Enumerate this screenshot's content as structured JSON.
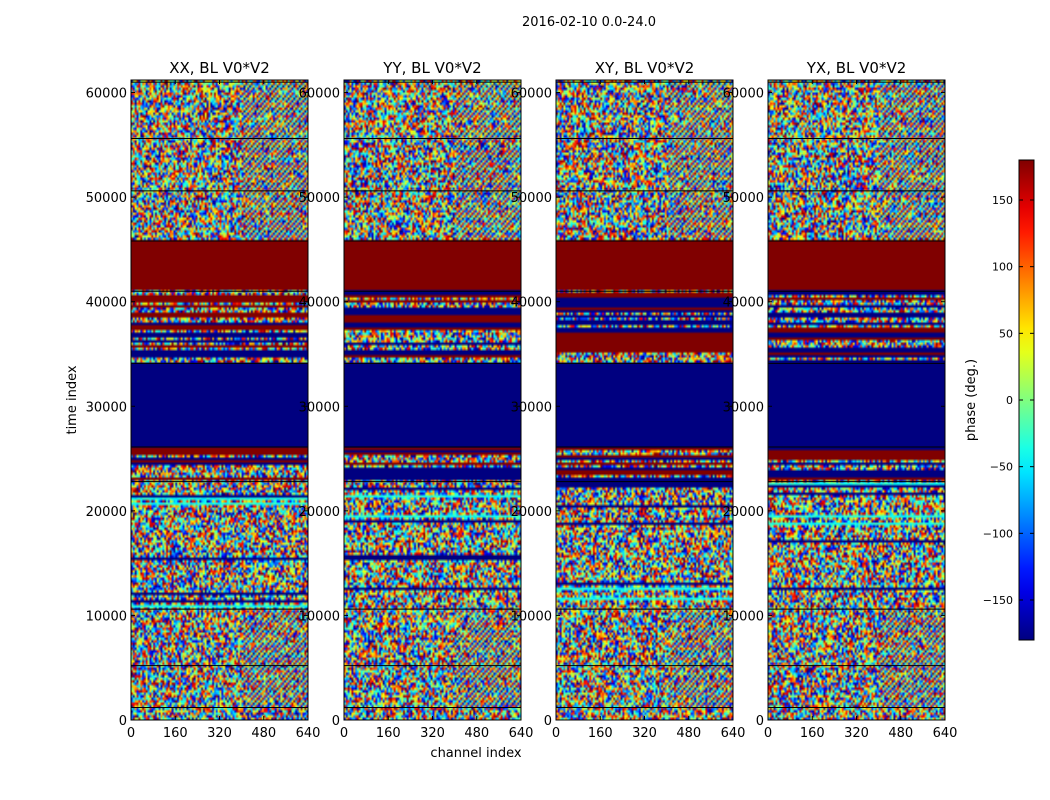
{
  "chart_data": {
    "type": "heatmap",
    "suptitle": "2016-02-10 0.0-24.0",
    "xlabel": "channel index",
    "ylabel": "time index",
    "xlim": [
      0,
      640
    ],
    "ylim": [
      0,
      61200
    ],
    "xticks": [
      0,
      160,
      320,
      480,
      640
    ],
    "yticks": [
      0,
      10000,
      20000,
      30000,
      40000,
      50000,
      60000
    ],
    "panels": [
      {
        "title": "XX, BL V0*V2"
      },
      {
        "title": "YY, BL V0*V2"
      },
      {
        "title": "XY, BL V0*V2"
      },
      {
        "title": "YX, BL V0*V2"
      }
    ],
    "bands": [
      {
        "t0": 0,
        "t1": 1200,
        "kind": "noise"
      },
      {
        "t0": 1200,
        "t1": 5200,
        "kind": "fringe_noise"
      },
      {
        "t0": 5200,
        "t1": 10600,
        "kind": "fringe_noise"
      },
      {
        "t0": 10600,
        "t1": 22800,
        "kind": "noise_striped"
      },
      {
        "t0": 22800,
        "t1": 26100,
        "kind": "mixed_striped"
      },
      {
        "t0": 26100,
        "t1": 34100,
        "kind": "const",
        "value": -180
      },
      {
        "t0": 34100,
        "t1": 41000,
        "kind": "mixed_striped"
      },
      {
        "t0": 41000,
        "t1": 45800,
        "kind": "const",
        "value": 180
      },
      {
        "t0": 45800,
        "t1": 50600,
        "kind": "fringe_noise"
      },
      {
        "t0": 50600,
        "t1": 55600,
        "kind": "fringe_noise"
      },
      {
        "t0": 55600,
        "t1": 61000,
        "kind": "fringe_noise"
      },
      {
        "t0": 61000,
        "t1": 61200,
        "kind": "noise"
      }
    ],
    "colorbar": {
      "label": "phase (deg.)",
      "range": [
        -180,
        180
      ],
      "ticks": [
        -150,
        -100,
        -50,
        0,
        50,
        100,
        150
      ],
      "colormap": "jet"
    }
  }
}
